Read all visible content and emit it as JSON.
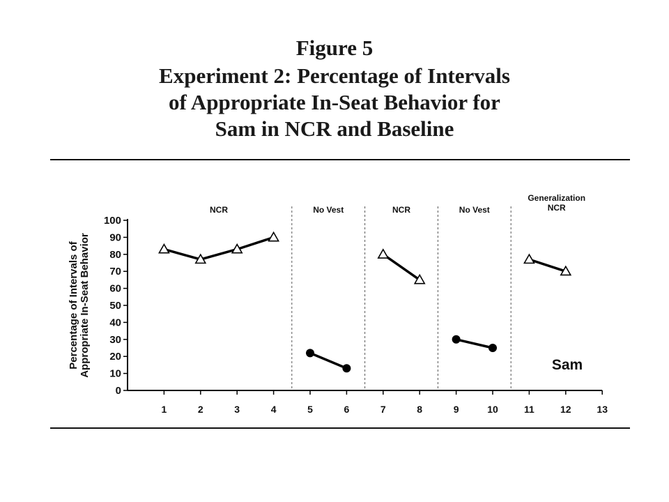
{
  "figure": {
    "title_lines": [
      "Figure 5",
      "Experiment 2: Percentage of Intervals",
      "of Appropriate In-Seat Behavior for",
      "Sam in NCR and Baseline"
    ]
  },
  "chart_data": {
    "type": "line",
    "ylabel_lines": [
      "Percentage of Intervals of",
      "Appropriate In-Seat Behavior"
    ],
    "xlabel": "",
    "ylim": [
      0,
      100
    ],
    "yticks": [
      0,
      10,
      20,
      30,
      40,
      50,
      60,
      70,
      80,
      90,
      100
    ],
    "xlim": [
      0,
      13
    ],
    "xticks": [
      1,
      2,
      3,
      4,
      5,
      6,
      7,
      8,
      9,
      10,
      11,
      12,
      13
    ],
    "grid": false,
    "participant_label": "Sam",
    "phase_dividers": [
      4.5,
      6.5,
      8.5,
      10.5
    ],
    "phases": [
      {
        "label_lines": [
          "NCR"
        ],
        "x_from": 0,
        "x_to": 4.5
      },
      {
        "label_lines": [
          "No Vest"
        ],
        "x_from": 4.5,
        "x_to": 6.5
      },
      {
        "label_lines": [
          "NCR"
        ],
        "x_from": 6.5,
        "x_to": 8.5
      },
      {
        "label_lines": [
          "No Vest"
        ],
        "x_from": 8.5,
        "x_to": 10.5
      },
      {
        "label_lines": [
          "Generalization",
          "NCR"
        ],
        "x_from": 10.5,
        "x_to": 13
      }
    ],
    "series": [
      {
        "marker": "triangle-open",
        "x": [
          1,
          2,
          3,
          4
        ],
        "y": [
          83,
          77,
          83,
          90
        ]
      },
      {
        "marker": "circle-filled",
        "x": [
          5,
          6
        ],
        "y": [
          22,
          13
        ]
      },
      {
        "marker": "triangle-open",
        "x": [
          7,
          8
        ],
        "y": [
          80,
          65
        ]
      },
      {
        "marker": "circle-filled",
        "x": [
          9,
          10
        ],
        "y": [
          30,
          25
        ]
      },
      {
        "marker": "triangle-open",
        "x": [
          11,
          12
        ],
        "y": [
          77,
          70
        ]
      }
    ]
  }
}
